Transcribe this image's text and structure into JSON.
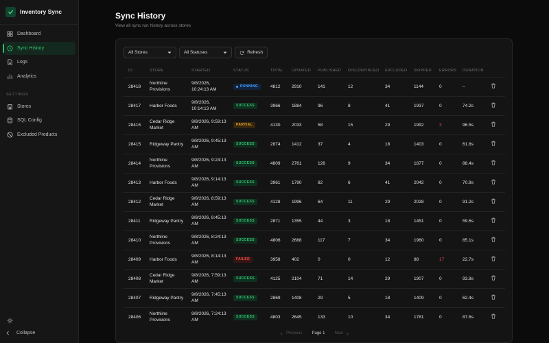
{
  "app": {
    "name": "Inventory Sync"
  },
  "sidebar": {
    "nav": [
      {
        "label": "Dashboard",
        "icon": "grid-icon",
        "active": false
      },
      {
        "label": "Sync History",
        "icon": "clock-icon",
        "active": true
      },
      {
        "label": "Logs",
        "icon": "file-icon",
        "active": false
      },
      {
        "label": "Analytics",
        "icon": "bar-chart-icon",
        "active": false
      }
    ],
    "settings_label": "SETTINGS",
    "settings": [
      {
        "label": "Stores",
        "icon": "store-icon"
      },
      {
        "label": "SQL Config",
        "icon": "database-icon"
      },
      {
        "label": "Excluded Products",
        "icon": "ban-icon"
      }
    ],
    "collapse_label": "Collapse",
    "theme_icon": "sun-icon"
  },
  "page": {
    "title": "Sync History",
    "subtitle": "View all sync run history across stores"
  },
  "filters": {
    "stores": "All Stores",
    "statuses": "All Statuses",
    "refresh": "Refresh"
  },
  "table": {
    "columns": [
      "ID",
      "STORE",
      "STARTED",
      "STATUS",
      "TOTAL",
      "UPDATED",
      "PUBLISHED",
      "DISCONTINUED",
      "EXCLUDED",
      "SKIPPED",
      "ERRORS",
      "DURATION"
    ],
    "rows": [
      {
        "id": "28418",
        "store": "Northline Provisions",
        "started": "9/8/2026, 10:24:13 AM",
        "status": "RUNNING",
        "total": "4812",
        "updated": "2910",
        "published": "141",
        "discontinued": "12",
        "excluded": "34",
        "skipped": "1144",
        "errors": "0",
        "duration": "–"
      },
      {
        "id": "28417",
        "store": "Harbor Foods",
        "started": "9/8/2026, 10:14:13 AM",
        "status": "SUCCESS",
        "total": "3966",
        "updated": "1884",
        "published": "96",
        "discontinued": "8",
        "excluded": "41",
        "skipped": "1937",
        "errors": "0",
        "duration": "74.2s"
      },
      {
        "id": "28416",
        "store": "Cedar Ridge Market",
        "started": "9/8/2026, 9:59:13 AM",
        "status": "PARTIAL",
        "total": "4130",
        "updated": "2033",
        "published": "58",
        "discontinued": "15",
        "excluded": "29",
        "skipped": "1992",
        "errors": "3",
        "duration": "96.5s"
      },
      {
        "id": "28415",
        "store": "Ridgeway Pantry",
        "started": "9/8/2026, 9:45:13 AM",
        "status": "SUCCESS",
        "total": "2874",
        "updated": "1412",
        "published": "37",
        "discontinued": "4",
        "excluded": "18",
        "skipped": "1403",
        "errors": "0",
        "duration": "61.8s"
      },
      {
        "id": "28414",
        "store": "Northline Provisions",
        "started": "9/8/2026, 9:24:13 AM",
        "status": "SUCCESS",
        "total": "4809",
        "updated": "2761",
        "published": "128",
        "discontinued": "9",
        "excluded": "34",
        "skipped": "1877",
        "errors": "0",
        "duration": "88.4s"
      },
      {
        "id": "28413",
        "store": "Harbor Foods",
        "started": "9/8/2026, 9:14:13 AM",
        "status": "SUCCESS",
        "total": "3961",
        "updated": "1790",
        "published": "82",
        "discontinued": "6",
        "excluded": "41",
        "skipped": "2042",
        "errors": "0",
        "duration": "70.9s"
      },
      {
        "id": "28412",
        "store": "Cedar Ridge Market",
        "started": "9/8/2026, 8:59:13 AM",
        "status": "SUCCESS",
        "total": "4128",
        "updated": "1996",
        "published": "64",
        "discontinued": "11",
        "excluded": "29",
        "skipped": "2028",
        "errors": "0",
        "duration": "91.2s"
      },
      {
        "id": "28411",
        "store": "Ridgeway Pantry",
        "started": "9/8/2026, 8:45:13 AM",
        "status": "SUCCESS",
        "total": "2871",
        "updated": "1355",
        "published": "44",
        "discontinued": "3",
        "excluded": "18",
        "skipped": "1451",
        "errors": "0",
        "duration": "59.6s"
      },
      {
        "id": "28410",
        "store": "Northline Provisions",
        "started": "9/8/2026, 8:24:13 AM",
        "status": "SUCCESS",
        "total": "4806",
        "updated": "2688",
        "published": "117",
        "discontinued": "7",
        "excluded": "34",
        "skipped": "1960",
        "errors": "0",
        "duration": "85.1s"
      },
      {
        "id": "28409",
        "store": "Harbor Foods",
        "started": "9/8/2026, 8:14:13 AM",
        "status": "FAILED",
        "total": "3958",
        "updated": "402",
        "published": "0",
        "discontinued": "0",
        "excluded": "12",
        "skipped": "88",
        "errors": "17",
        "duration": "22.7s"
      },
      {
        "id": "28408",
        "store": "Cedar Ridge Market",
        "started": "9/8/2026, 7:59:13 AM",
        "status": "SUCCESS",
        "total": "4125",
        "updated": "2104",
        "published": "71",
        "discontinued": "14",
        "excluded": "29",
        "skipped": "1907",
        "errors": "0",
        "duration": "93.8s"
      },
      {
        "id": "28407",
        "store": "Ridgeway Pantry",
        "started": "9/8/2026, 7:45:13 AM",
        "status": "SUCCESS",
        "total": "2869",
        "updated": "1408",
        "published": "29",
        "discontinued": "5",
        "excluded": "18",
        "skipped": "1409",
        "errors": "0",
        "duration": "62.4s"
      },
      {
        "id": "28406",
        "store": "Northline Provisions",
        "started": "9/8/2026, 7:24:13 AM",
        "status": "SUCCESS",
        "total": "4803",
        "updated": "2645",
        "published": "133",
        "discontinued": "10",
        "excluded": "34",
        "skipped": "1781",
        "errors": "0",
        "duration": "87.6s"
      }
    ]
  },
  "pagination": {
    "previous": "Previous",
    "page": "Page 1",
    "next": "Next"
  },
  "colors": {
    "accent": "#35c46f",
    "running": "#4da2ff",
    "partial": "#e3a030",
    "failed": "#ef5350"
  }
}
